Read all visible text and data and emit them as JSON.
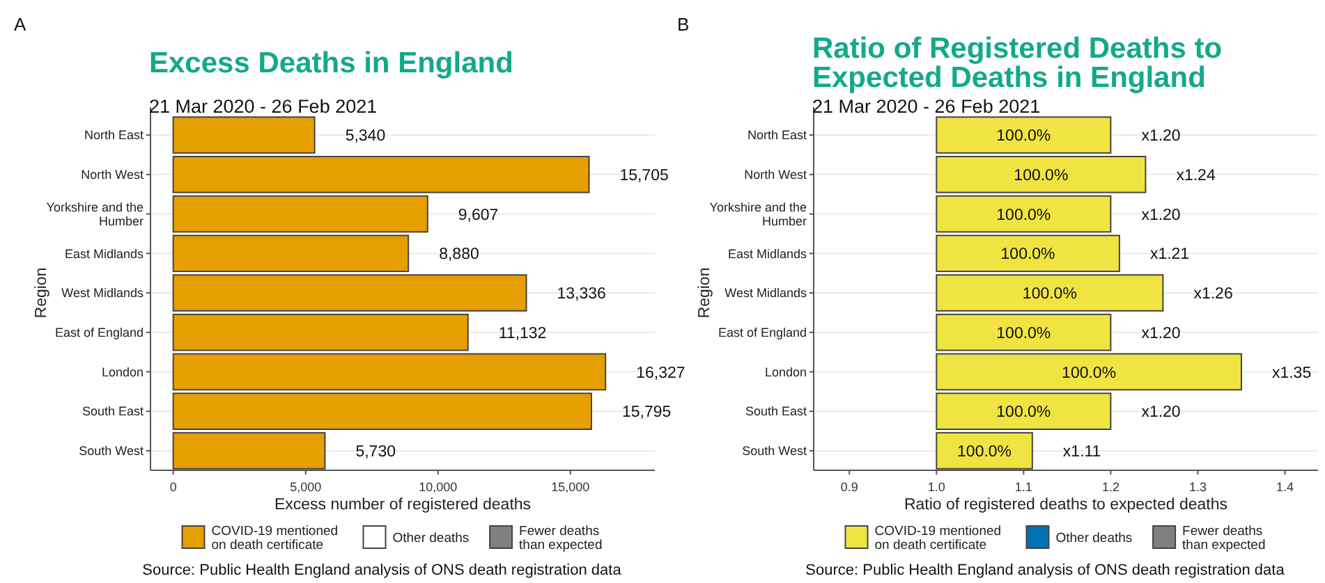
{
  "chart_data": [
    {
      "type": "bar",
      "orientation": "horizontal",
      "title": "Excess Deaths in England",
      "subtitle": "21 Mar 2020 - 26 Feb 2021",
      "xlabel": "Excess number of registered deaths",
      "ylabel": "Region",
      "categories": [
        "North East",
        "North West",
        "Yorkshire and the Humber",
        "East Midlands",
        "West Midlands",
        "East of England",
        "London",
        "South East",
        "South West"
      ],
      "series": [
        {
          "name": "COVID-19 mentioned on death certificate",
          "color": "#e69f00",
          "values": [
            5340,
            15705,
            9607,
            8880,
            13336,
            11132,
            16327,
            15795,
            5730
          ],
          "value_labels": [
            "5,340",
            "15,705",
            "9,607",
            "8,880",
            "13,336",
            "11,132",
            "16,327",
            "15,795",
            "5,730"
          ]
        },
        {
          "name": "Other deaths",
          "color": "#ffffff",
          "values": [
            null,
            null,
            null,
            null,
            null,
            null,
            null,
            null,
            null
          ]
        },
        {
          "name": "Fewer deaths than expected",
          "color": "#808080",
          "values": [
            null,
            null,
            null,
            null,
            null,
            null,
            null,
            null,
            null
          ]
        }
      ],
      "xlim": [
        -860,
        18190
      ],
      "xticks": [
        {
          "value": 0,
          "label": "0"
        },
        {
          "value": 5000,
          "label": "5,000"
        },
        {
          "value": 10000,
          "label": "10,000"
        },
        {
          "value": 15000,
          "label": "15,000"
        }
      ],
      "grid": "y",
      "legend": "bottom",
      "annotations": [
        "A",
        "Source: Public Health England analysis of ONS death registration data"
      ]
    },
    {
      "type": "bar",
      "orientation": "horizontal",
      "title": "Ratio of Registered Deaths to Expected Deaths in England",
      "subtitle": "21 Mar 2020 - 26 Feb 2021",
      "xlabel": "Ratio of registered deaths to expected deaths",
      "ylabel": "Region",
      "categories": [
        "North East",
        "North West",
        "Yorkshire and the Humber",
        "East Midlands",
        "West Midlands",
        "East of England",
        "London",
        "South East",
        "South West"
      ],
      "series": [
        {
          "name": "COVID-19 mentioned on death certificate",
          "color": "#f0e442",
          "base": [
            1,
            1,
            1,
            1,
            1,
            1,
            1,
            1,
            1
          ],
          "values": [
            0.2,
            0.24,
            0.2,
            0.21,
            0.26,
            0.2,
            0.35,
            0.2,
            0.11
          ],
          "value_labels": [
            "x1.20",
            "x1.24",
            "x1.20",
            "x1.21",
            "x1.26",
            "x1.20",
            "x1.35",
            "x1.20",
            "x1.11"
          ]
        },
        {
          "name": "Other deaths",
          "color": "#0072b2",
          "values": [
            null,
            null,
            null,
            null,
            null,
            null,
            null,
            null,
            null
          ]
        },
        {
          "name": "Fewer deaths than expected",
          "color": "#808080",
          "values": [
            null,
            null,
            null,
            null,
            null,
            null,
            null,
            null,
            null
          ]
        }
      ],
      "xlim": [
        0.859,
        1.438
      ],
      "xticks": [
        0.9,
        {
          "value": 1.0,
          "label": "1.0"
        },
        1.1,
        1.2,
        1.3,
        1.4
      ],
      "grid": "y",
      "legend": "bottom",
      "annotations": [
        "B",
        "Source: Public Health England analysis of ONS death registration data",
        "100.0%",
        "100.0%",
        "100.0%",
        "100.0%",
        "100.0%",
        "100.0%",
        "100.0%",
        "100.0%",
        "100.0%"
      ]
    }
  ]
}
